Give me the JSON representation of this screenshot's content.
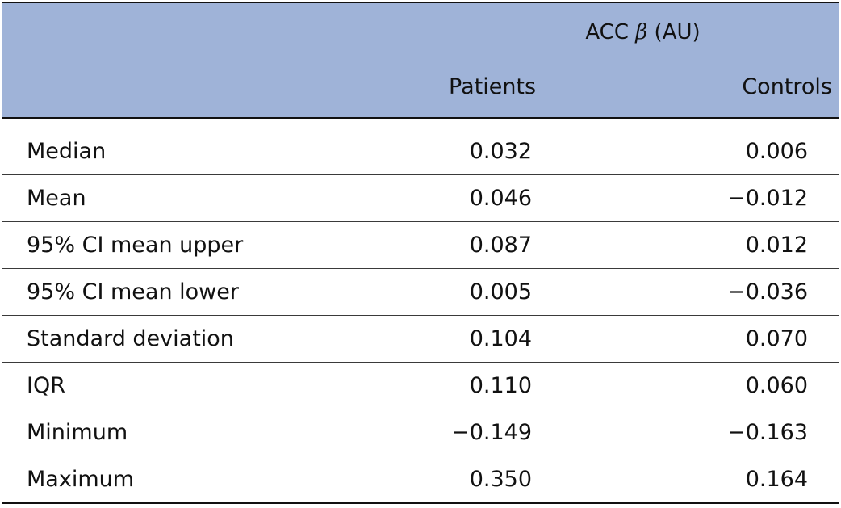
{
  "header": {
    "group_prefix": "ACC",
    "group_symbol": "β",
    "group_suffix": "(AU)",
    "columns": [
      "Patients",
      "Controls"
    ]
  },
  "rows": [
    {
      "label": "Median",
      "patients": "0.032",
      "controls": "0.006"
    },
    {
      "label": "Mean",
      "patients": "0.046",
      "controls": "−0.012"
    },
    {
      "label": "95% CI mean upper",
      "patients": "0.087",
      "controls": "0.012"
    },
    {
      "label": "95% CI mean lower",
      "patients": "0.005",
      "controls": "−0.036"
    },
    {
      "label": "Standard deviation",
      "patients": "0.104",
      "controls": "0.070"
    },
    {
      "label": "IQR",
      "patients": "0.110",
      "controls": "0.060"
    },
    {
      "label": "Minimum",
      "patients": "−0.149",
      "controls": "−0.163"
    },
    {
      "label": "Maximum",
      "patients": "0.350",
      "controls": "0.164"
    }
  ]
}
